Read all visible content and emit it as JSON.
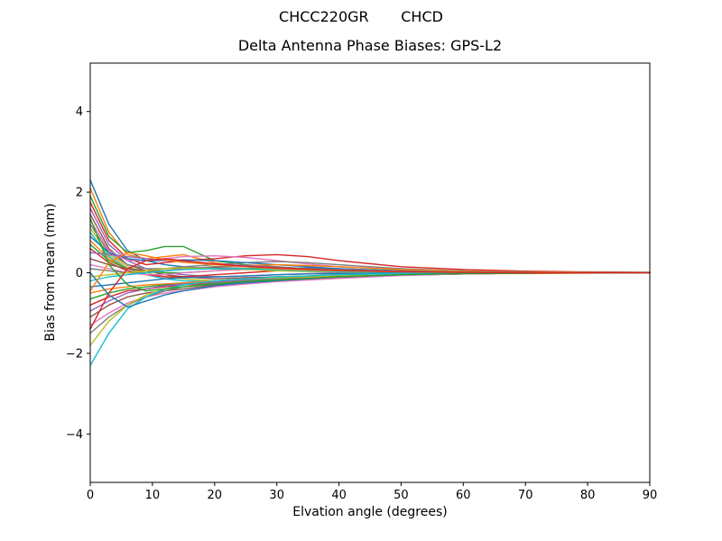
{
  "figure": {
    "suptitle": "CHCC220GR       CHCD",
    "title": "Delta Antenna Phase Biases: GPS-L2",
    "xlabel": "Elvation angle (degrees)",
    "ylabel": "Bias from mean (mm)"
  },
  "chart_data": {
    "type": "line",
    "title": "Delta Antenna Phase Biases: GPS-L2",
    "suptitle": "CHCC220GR       CHCD",
    "xlabel": "Elvation angle (degrees)",
    "ylabel": "Bias from mean (mm)",
    "xlim": [
      0,
      90
    ],
    "ylim": [
      -5.2,
      5.2
    ],
    "xticks": [
      0,
      10,
      20,
      30,
      40,
      50,
      60,
      70,
      80,
      90
    ],
    "yticks": [
      -4,
      -2,
      0,
      2,
      4
    ],
    "grid": false,
    "legend": "none",
    "frame_color": "#000000",
    "palette": [
      "#1f77b4",
      "#ff7f0e",
      "#2ca02c",
      "#d62728",
      "#9467bd",
      "#8c564b",
      "#e377c2",
      "#7f7f7f",
      "#bcbd22",
      "#17becf"
    ],
    "x": [
      0,
      3,
      6,
      9,
      12,
      15,
      20,
      25,
      30,
      35,
      40,
      50,
      60,
      70,
      80,
      90
    ],
    "series": [
      {
        "values": [
          2.3,
          1.2,
          0.55,
          0.3,
          0.2,
          0.15,
          0.1,
          0.08,
          0.1,
          0.12,
          0.1,
          0.05,
          0.03,
          0.02,
          0.01,
          0.0
        ]
      },
      {
        "values": [
          2.1,
          1.0,
          0.45,
          0.35,
          0.4,
          0.45,
          0.25,
          0.15,
          0.1,
          0.05,
          0.02,
          0.0,
          -0.02,
          -0.02,
          -0.01,
          0.0
        ]
      },
      {
        "values": [
          1.9,
          0.9,
          0.5,
          0.55,
          0.65,
          0.65,
          0.3,
          0.2,
          0.15,
          0.1,
          0.08,
          0.05,
          0.03,
          0.02,
          0.01,
          0.01
        ]
      },
      {
        "values": [
          1.75,
          0.8,
          0.35,
          0.2,
          0.25,
          0.3,
          0.35,
          0.42,
          0.45,
          0.4,
          0.3,
          0.15,
          0.08,
          0.04,
          0.02,
          0.01
        ]
      },
      {
        "values": [
          1.6,
          0.7,
          0.3,
          0.1,
          0.0,
          -0.05,
          -0.1,
          -0.08,
          -0.05,
          -0.02,
          0.0,
          0.0,
          0.0,
          0.0,
          0.0,
          0.0
        ]
      },
      {
        "values": [
          1.45,
          0.6,
          0.2,
          0.05,
          -0.05,
          -0.1,
          -0.15,
          -0.12,
          -0.1,
          -0.08,
          -0.05,
          -0.02,
          -0.01,
          0.0,
          0.0,
          0.0
        ]
      },
      {
        "values": [
          1.3,
          0.55,
          0.3,
          0.3,
          0.35,
          0.4,
          0.42,
          0.38,
          0.3,
          0.22,
          0.15,
          0.08,
          0.04,
          0.02,
          0.01,
          0.0
        ]
      },
      {
        "values": [
          1.2,
          0.5,
          0.2,
          0.1,
          0.1,
          0.15,
          0.2,
          0.25,
          0.28,
          0.25,
          0.2,
          0.1,
          0.05,
          0.02,
          0.01,
          0.0
        ]
      },
      {
        "values": [
          1.1,
          0.45,
          0.15,
          0.0,
          -0.1,
          -0.15,
          -0.2,
          -0.18,
          -0.15,
          -0.1,
          -0.08,
          -0.04,
          -0.02,
          -0.01,
          0.0,
          0.0
        ]
      },
      {
        "values": [
          1.0,
          0.4,
          0.1,
          -0.05,
          -0.15,
          -0.2,
          -0.22,
          -0.2,
          -0.15,
          -0.12,
          -0.1,
          -0.05,
          -0.02,
          -0.01,
          0.0,
          0.0
        ]
      },
      {
        "values": [
          0.9,
          0.5,
          0.35,
          0.3,
          0.3,
          0.32,
          0.3,
          0.25,
          0.2,
          0.15,
          0.1,
          0.05,
          0.02,
          0.01,
          0.0,
          0.0
        ]
      },
      {
        "values": [
          0.8,
          0.35,
          0.1,
          0.0,
          0.05,
          0.1,
          0.15,
          0.18,
          0.2,
          0.18,
          0.15,
          0.08,
          0.04,
          0.02,
          0.01,
          0.0
        ]
      },
      {
        "values": [
          0.7,
          0.3,
          0.1,
          0.05,
          0.0,
          0.0,
          0.05,
          0.1,
          0.12,
          0.1,
          0.08,
          0.04,
          0.02,
          0.01,
          0.0,
          0.0
        ]
      },
      {
        "values": [
          0.6,
          0.25,
          0.05,
          -0.05,
          -0.1,
          -0.1,
          -0.05,
          0.0,
          0.05,
          0.05,
          0.05,
          0.02,
          0.01,
          0.0,
          0.0,
          0.0
        ]
      },
      {
        "values": [
          0.5,
          0.45,
          0.4,
          0.35,
          0.3,
          0.28,
          0.22,
          0.18,
          0.14,
          0.1,
          0.08,
          0.04,
          0.02,
          0.01,
          0.0,
          0.0
        ]
      },
      {
        "values": [
          0.35,
          0.2,
          0.1,
          0.05,
          0.05,
          0.1,
          0.12,
          0.1,
          0.08,
          0.05,
          0.03,
          0.01,
          0.0,
          0.0,
          0.0,
          0.0
        ]
      },
      {
        "values": [
          0.2,
          0.1,
          0.0,
          -0.05,
          -0.05,
          0.0,
          0.05,
          0.08,
          0.08,
          0.06,
          0.04,
          0.02,
          0.01,
          0.0,
          0.0,
          0.0
        ]
      },
      {
        "values": [
          0.1,
          0.05,
          0.0,
          0.0,
          0.05,
          0.1,
          0.15,
          0.15,
          0.12,
          0.1,
          0.08,
          0.04,
          0.02,
          0.01,
          0.0,
          0.0
        ]
      },
      {
        "values": [
          -0.1,
          -0.05,
          0.0,
          0.05,
          0.1,
          0.12,
          0.1,
          0.08,
          0.05,
          0.03,
          0.02,
          0.01,
          0.0,
          0.0,
          0.0,
          0.0
        ]
      },
      {
        "values": [
          -0.2,
          -0.1,
          -0.05,
          0.0,
          0.05,
          0.08,
          0.1,
          0.1,
          0.08,
          0.05,
          0.03,
          0.01,
          0.0,
          0.0,
          0.0,
          0.0
        ]
      },
      {
        "values": [
          -0.35,
          -0.3,
          -0.25,
          -0.2,
          -0.15,
          -0.12,
          -0.1,
          -0.08,
          -0.05,
          -0.03,
          -0.02,
          -0.01,
          0.0,
          0.0,
          0.0,
          0.0
        ]
      },
      {
        "values": [
          -0.5,
          -0.4,
          -0.35,
          -0.3,
          -0.28,
          -0.25,
          -0.2,
          -0.15,
          -0.12,
          -0.1,
          -0.08,
          -0.04,
          -0.02,
          -0.01,
          0.0,
          0.0
        ]
      },
      {
        "values": [
          -0.65,
          -0.5,
          -0.4,
          -0.35,
          -0.3,
          -0.28,
          -0.22,
          -0.18,
          -0.15,
          -0.12,
          -0.1,
          -0.05,
          -0.02,
          -0.01,
          0.0,
          0.0
        ]
      },
      {
        "values": [
          -0.8,
          -0.6,
          -0.45,
          -0.4,
          -0.35,
          -0.3,
          -0.25,
          -0.2,
          -0.18,
          -0.15,
          -0.12,
          -0.06,
          -0.03,
          -0.01,
          0.0,
          0.0
        ]
      },
      {
        "values": [
          -0.95,
          -0.7,
          -0.5,
          -0.4,
          -0.32,
          -0.28,
          -0.22,
          -0.18,
          -0.15,
          -0.12,
          -0.1,
          -0.05,
          -0.02,
          -0.01,
          0.0,
          0.0
        ]
      },
      {
        "values": [
          -1.1,
          -0.8,
          -0.6,
          -0.5,
          -0.45,
          -0.4,
          -0.3,
          -0.25,
          -0.2,
          -0.15,
          -0.12,
          -0.06,
          -0.03,
          -0.01,
          0.0,
          0.0
        ]
      },
      {
        "values": [
          -1.3,
          -1.0,
          -0.75,
          -0.6,
          -0.5,
          -0.45,
          -0.35,
          -0.28,
          -0.22,
          -0.18,
          -0.14,
          -0.07,
          -0.03,
          -0.01,
          0.0,
          0.0
        ]
      },
      {
        "values": [
          -1.5,
          -1.1,
          -0.8,
          -0.6,
          -0.45,
          -0.35,
          -0.25,
          -0.2,
          -0.15,
          -0.12,
          -0.1,
          -0.05,
          -0.02,
          -0.01,
          0.0,
          0.0
        ]
      },
      {
        "values": [
          -1.8,
          -1.2,
          -0.8,
          -0.55,
          -0.4,
          -0.3,
          -0.2,
          -0.15,
          -0.12,
          -0.1,
          -0.08,
          -0.04,
          -0.02,
          -0.01,
          0.0,
          0.0
        ]
      },
      {
        "values": [
          -2.3,
          -1.5,
          -0.9,
          -0.6,
          -0.4,
          -0.3,
          -0.2,
          -0.15,
          -0.1,
          -0.08,
          -0.05,
          -0.02,
          -0.01,
          0.0,
          0.0,
          0.0
        ]
      },
      {
        "values": [
          0.0,
          -0.55,
          -0.85,
          -0.7,
          -0.55,
          -0.45,
          -0.32,
          -0.25,
          -0.2,
          -0.15,
          -0.1,
          -0.05,
          -0.02,
          0.0,
          0.0,
          0.0
        ]
      },
      {
        "values": [
          -0.45,
          0.25,
          0.5,
          0.42,
          0.32,
          0.26,
          0.2,
          0.15,
          0.1,
          0.07,
          0.05,
          0.02,
          0.01,
          0.0,
          0.0,
          0.0
        ]
      },
      {
        "values": [
          1.35,
          0.2,
          -0.3,
          -0.45,
          -0.4,
          -0.35,
          -0.28,
          -0.22,
          -0.18,
          -0.14,
          -0.1,
          -0.05,
          -0.02,
          -0.01,
          0.0,
          0.0
        ]
      },
      {
        "values": [
          -1.4,
          -0.5,
          0.1,
          0.3,
          0.35,
          0.3,
          0.22,
          0.16,
          0.12,
          0.09,
          0.06,
          0.03,
          0.01,
          0.0,
          0.0,
          0.0
        ]
      }
    ]
  }
}
